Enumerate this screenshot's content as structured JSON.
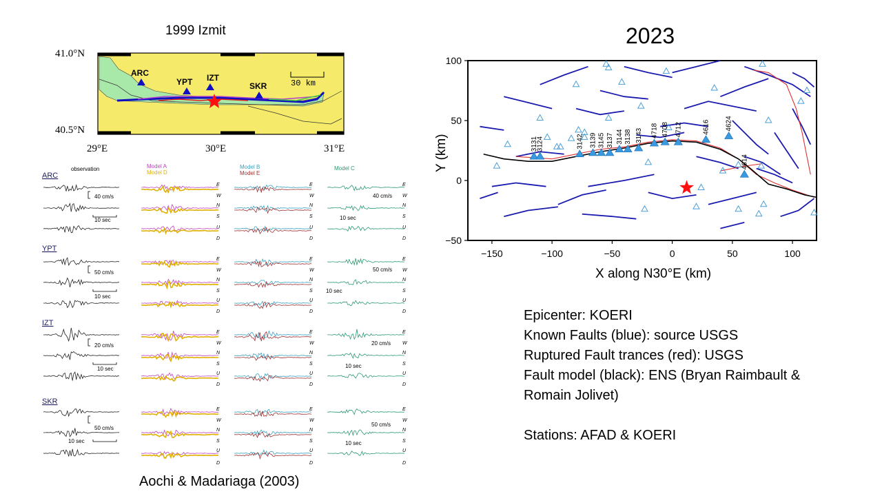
{
  "left_panel": {
    "title": "1999 Izmit",
    "map": {
      "lat_labels": [
        "41.0°N",
        "40.5°N"
      ],
      "lon_labels": [
        "29°E",
        "30°E",
        "31°E"
      ],
      "scale_label": "30 km",
      "stations": [
        "ARC",
        "YPT",
        "IZT",
        "SKR"
      ]
    },
    "waveforms": {
      "column_headers": [
        "observation",
        "Model A",
        "Model D",
        "Model B",
        "Model E",
        "Model C"
      ],
      "component_labels": [
        "E",
        "W",
        "N",
        "S",
        "U",
        "D"
      ],
      "stations": [
        {
          "name": "ARC",
          "obs_amp": "40 cm/s",
          "obs_time": "10 sec",
          "c_amp": "40 cm/s",
          "c_time": "10 sec"
        },
        {
          "name": "YPT",
          "obs_amp": "50 cm/s",
          "obs_time": "10 sec",
          "c_amp": "50 cm/s",
          "c_time": "10 sec"
        },
        {
          "name": "IZT",
          "obs_amp": "20 cm/s",
          "obs_time": "10 sec",
          "c_amp": "20 cm/s",
          "c_time": "10 sec"
        },
        {
          "name": "SKR",
          "obs_amp": "50 cm/s",
          "obs_time": "10 sec",
          "c_amp": "50 cm/s",
          "c_time": "10 sec"
        }
      ]
    },
    "caption": "Aochi & Madariaga (2003)"
  },
  "right_panel": {
    "title": "2023",
    "plot": {
      "xlabel": "X along N30°E (km)",
      "ylabel": "Y (km)",
      "x_ticks": [
        "−150",
        "−100",
        "−50",
        "0",
        "50",
        "100"
      ],
      "y_ticks": [
        "100",
        "50",
        "0",
        "−50"
      ],
      "station_labels": [
        "3131",
        "3124",
        "3142",
        "3139",
        "3145",
        "3137",
        "3144",
        "3138",
        "3143",
        "4718",
        "4708",
        "4712",
        "4616",
        "4624",
        "4614"
      ]
    },
    "legend_lines": [
      "Epicenter: KOERI",
      "Known Faults  (blue): source USGS",
      "Ruptured Fault trances (red): USGS",
      "Fault model (black): ENS (Bryan Raimbault &",
      "Romain Jolivet)",
      "",
      "Stations: AFAD & KOERI"
    ]
  },
  "chart_data": {
    "type": "scatter",
    "title": "2023",
    "xlabel": "X along N30°E (km)",
    "ylabel": "Y (km)",
    "xlim": [
      -170,
      120
    ],
    "ylim": [
      -50,
      100
    ],
    "x_ticks": [
      -150,
      -100,
      -50,
      0,
      50,
      100
    ],
    "y_ticks": [
      -50,
      0,
      50,
      100
    ],
    "epicenter": {
      "x": 12,
      "y": -6
    },
    "labeled_stations": [
      {
        "name": "3131",
        "x": -115,
        "y": 20
      },
      {
        "name": "3124",
        "x": -110,
        "y": 20
      },
      {
        "name": "3142",
        "x": -77,
        "y": 22
      },
      {
        "name": "3139",
        "x": -66,
        "y": 23
      },
      {
        "name": "3145",
        "x": -59,
        "y": 23
      },
      {
        "name": "3137",
        "x": -52,
        "y": 23
      },
      {
        "name": "3144",
        "x": -44,
        "y": 26
      },
      {
        "name": "3138",
        "x": -37,
        "y": 26
      },
      {
        "name": "3143",
        "x": -28,
        "y": 27
      },
      {
        "name": "4718",
        "x": -15,
        "y": 31
      },
      {
        "name": "4708",
        "x": -6,
        "y": 32
      },
      {
        "name": "4712",
        "x": 5,
        "y": 32
      },
      {
        "name": "4616",
        "x": 28,
        "y": 34
      },
      {
        "name": "4624",
        "x": 47,
        "y": 37
      },
      {
        "name": "4614",
        "x": 60,
        "y": 5
      }
    ],
    "other_stations": [
      {
        "x": -146,
        "y": 12
      },
      {
        "x": -137,
        "y": 30
      },
      {
        "x": -110,
        "y": 52
      },
      {
        "x": -104,
        "y": 36
      },
      {
        "x": -96,
        "y": 28
      },
      {
        "x": -93,
        "y": 28
      },
      {
        "x": -84,
        "y": 35
      },
      {
        "x": -78,
        "y": 42
      },
      {
        "x": -80,
        "y": 80
      },
      {
        "x": -73,
        "y": 40
      },
      {
        "x": -73,
        "y": 36
      },
      {
        "x": -55,
        "y": 97
      },
      {
        "x": -53,
        "y": 94
      },
      {
        "x": -53,
        "y": 52
      },
      {
        "x": -42,
        "y": 82
      },
      {
        "x": -26,
        "y": 62
      },
      {
        "x": -23,
        "y": -24
      },
      {
        "x": -20,
        "y": 15
      },
      {
        "x": -5,
        "y": 91
      },
      {
        "x": -3,
        "y": 44
      },
      {
        "x": 24,
        "y": -6
      },
      {
        "x": 20,
        "y": -22
      },
      {
        "x": 35,
        "y": 77
      },
      {
        "x": 42,
        "y": 8
      },
      {
        "x": 55,
        "y": 13
      },
      {
        "x": 55,
        "y": -24
      },
      {
        "x": 74,
        "y": 12
      },
      {
        "x": 76,
        "y": -20
      },
      {
        "x": 72,
        "y": -28
      },
      {
        "x": 75,
        "y": 97
      },
      {
        "x": 80,
        "y": 50
      },
      {
        "x": 112,
        "y": 75
      },
      {
        "x": 118,
        "y": -27
      },
      {
        "x": 107,
        "y": 66
      }
    ],
    "fault_model_black": [
      {
        "x": -157,
        "y": 22
      },
      {
        "x": -140,
        "y": 18
      },
      {
        "x": -120,
        "y": 16
      },
      {
        "x": -100,
        "y": 16
      },
      {
        "x": -80,
        "y": 20
      },
      {
        "x": -60,
        "y": 24
      },
      {
        "x": -40,
        "y": 27
      },
      {
        "x": -20,
        "y": 31
      },
      {
        "x": 0,
        "y": 33
      },
      {
        "x": 20,
        "y": 32
      },
      {
        "x": 40,
        "y": 26
      },
      {
        "x": 55,
        "y": 18
      },
      {
        "x": 65,
        "y": 10
      },
      {
        "x": 80,
        "y": -3
      },
      {
        "x": 95,
        "y": -7
      },
      {
        "x": 110,
        "y": -12
      },
      {
        "x": 120,
        "y": -14
      }
    ]
  }
}
